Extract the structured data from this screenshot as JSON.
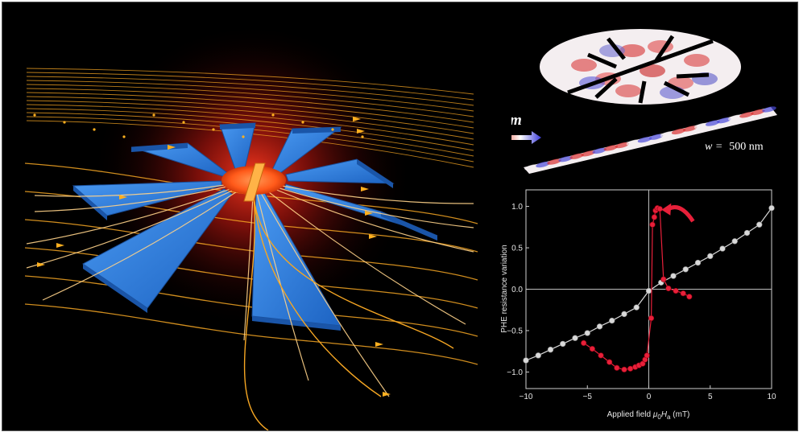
{
  "illustration": {
    "concentrator_petals": 8,
    "colors": {
      "background": "#000000",
      "petal": "#2f7fe0",
      "glow": "#ff2a1a",
      "field_lines": "#f5a623"
    }
  },
  "domain_panel": {
    "m_label": "m",
    "w_label": "w =",
    "w_value": "500 nm"
  },
  "chart_data": {
    "type": "scatter",
    "xlabel_prefix": "Applied field ",
    "xlabel_symbol": "μ",
    "xlabel_sub0": "0",
    "xlabel_symbol2": "H",
    "xlabel_sub1": "a",
    "xlabel_unit": " (mT)",
    "ylabel": "PHE resistance variation",
    "xlim": [
      -10,
      10
    ],
    "ylim": [
      -1.2,
      1.2
    ],
    "xticks": [
      "−10",
      "−5",
      "0",
      "5",
      "10"
    ],
    "yticks": [
      "−1.0",
      "−0.5",
      "0.0",
      "0.5",
      "1.0"
    ],
    "series": [
      {
        "color": "#d9d9d9",
        "points": [
          [
            -10,
            -0.86
          ],
          [
            -9,
            -0.8
          ],
          [
            -8,
            -0.73
          ],
          [
            -7,
            -0.66
          ],
          [
            -6,
            -0.59
          ],
          [
            -5,
            -0.53
          ],
          [
            -4,
            -0.45
          ],
          [
            -3,
            -0.38
          ],
          [
            -2,
            -0.3
          ],
          [
            -1,
            -0.22
          ],
          [
            0,
            -0.02
          ],
          [
            1,
            0.08
          ],
          [
            2,
            0.16
          ],
          [
            3,
            0.24
          ],
          [
            4,
            0.32
          ],
          [
            5,
            0.4
          ],
          [
            6,
            0.49
          ],
          [
            7,
            0.58
          ],
          [
            8,
            0.68
          ],
          [
            9,
            0.78
          ],
          [
            10,
            0.98
          ]
        ]
      },
      {
        "color": "#e8203a",
        "points": [
          [
            -5.3,
            -0.65
          ],
          [
            -4.6,
            -0.72
          ],
          [
            -3.9,
            -0.8
          ],
          [
            -3.2,
            -0.88
          ],
          [
            -2.6,
            -0.95
          ],
          [
            -2.0,
            -0.97
          ],
          [
            -1.5,
            -0.96
          ],
          [
            -1.1,
            -0.94
          ],
          [
            -0.8,
            -0.92
          ],
          [
            -0.5,
            -0.9
          ],
          [
            -0.3,
            -0.85
          ],
          [
            -0.15,
            -0.8
          ],
          [
            0.2,
            -0.35
          ],
          [
            0.3,
            0.78
          ],
          [
            0.45,
            0.87
          ],
          [
            0.55,
            0.95
          ],
          [
            0.7,
            0.98
          ],
          [
            0.9,
            0.97
          ],
          [
            1.2,
            0.12
          ],
          [
            1.6,
            0.01
          ],
          [
            2.2,
            -0.02
          ],
          [
            2.8,
            -0.05
          ],
          [
            3.3,
            -0.09
          ]
        ]
      }
    ],
    "arrow_color": "#e8203a"
  }
}
